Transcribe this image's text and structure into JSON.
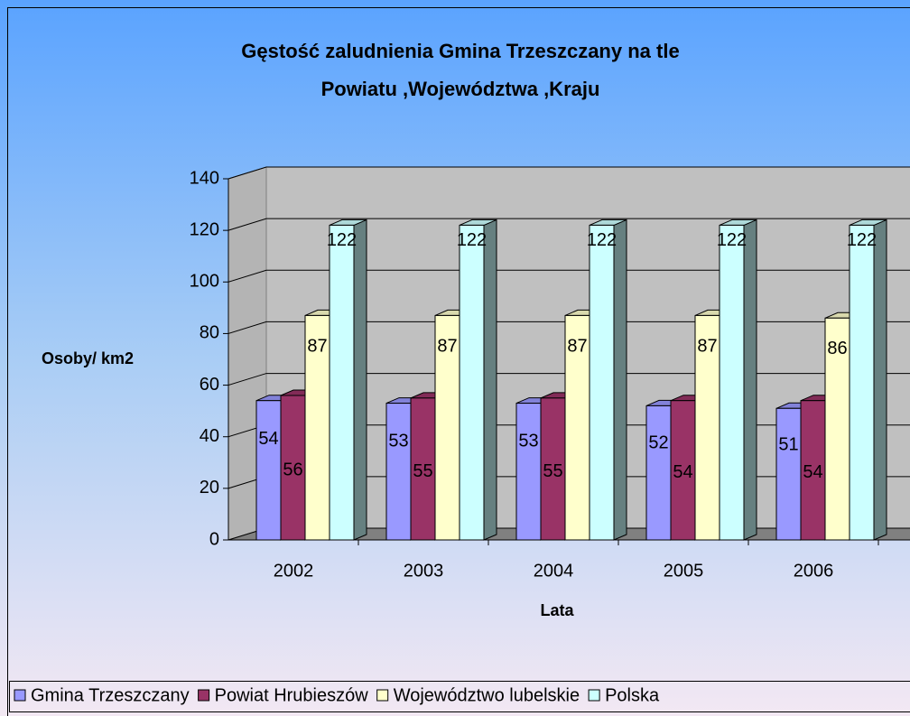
{
  "chart_data": {
    "type": "bar",
    "title": [
      "Gęstość zaludnienia Gmina Trzeszczany na tle",
      "Powiatu ,Województwa ,Kraju"
    ],
    "x_label": "Lata",
    "y_label": "Osoby/ km2",
    "categories": [
      "2002",
      "2003",
      "2004",
      "2005",
      "2006"
    ],
    "series": [
      {
        "name": "Gmina Trzeszczany",
        "color": "#9999ff",
        "values": [
          54,
          53,
          53,
          52,
          51
        ]
      },
      {
        "name": "Powiat Hrubieszów",
        "color": "#993366",
        "values": [
          56,
          55,
          55,
          54,
          54
        ]
      },
      {
        "name": "Województwo lubelskie",
        "color": "#ffffcc",
        "values": [
          87,
          87,
          87,
          87,
          86
        ]
      },
      {
        "name": "Polska",
        "color": "#ccffff",
        "values": [
          122,
          122,
          122,
          122,
          122
        ]
      }
    ],
    "ylim": [
      0,
      140
    ],
    "yticks": [
      0,
      20,
      40,
      60,
      80,
      100,
      120,
      140
    ],
    "grid": true,
    "legend": "bottom"
  }
}
